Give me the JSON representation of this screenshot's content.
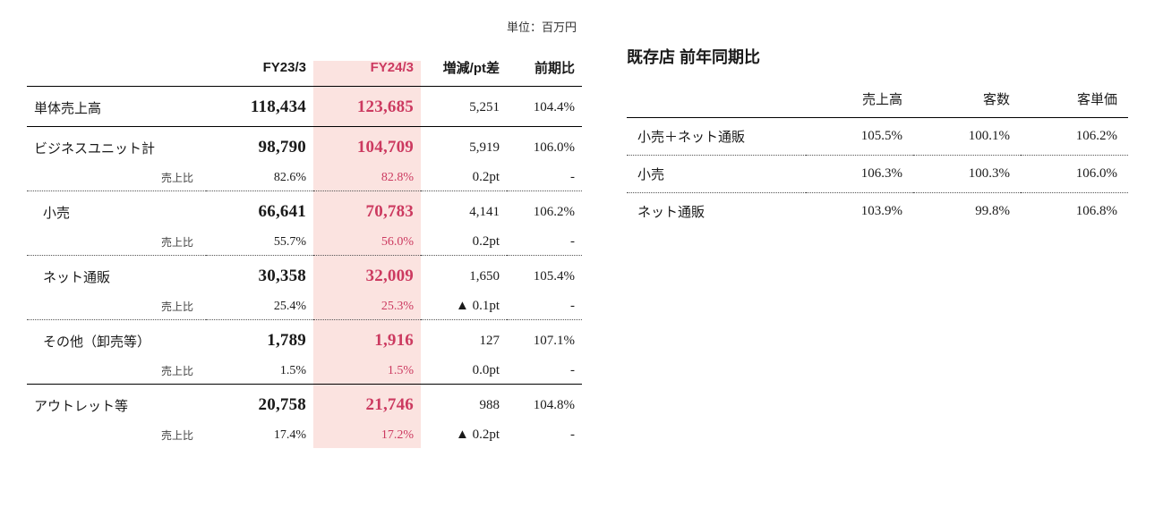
{
  "colors": {
    "text": "#1a1a1a",
    "highlight_bg": "#fbe3e0",
    "highlight_fg": "#cc3a60",
    "border_solid": "#000000",
    "border_dotted": "#555555",
    "background": "#ffffff"
  },
  "left_table": {
    "unit_note": "単位：百万円",
    "headers": {
      "label": "",
      "fy23": "FY23/3",
      "fy24": "FY24/3",
      "diff": "増減/pt差",
      "yoy": "前期比"
    },
    "ratio_label": "売上比",
    "rows": [
      {
        "label": "単体売上高",
        "fy23": "118,434",
        "fy24": "123,685",
        "diff": "5,251",
        "yoy": "104.4%",
        "border": "solid",
        "indent": false,
        "ratio": null
      },
      {
        "label": "ビジネスユニット計",
        "fy23": "98,790",
        "fy24": "104,709",
        "diff": "5,919",
        "yoy": "106.0%",
        "border": "none",
        "indent": false,
        "ratio": {
          "fy23": "82.6%",
          "fy24": "82.8%",
          "diff": "0.2pt",
          "yoy": "-",
          "border": "dotted"
        }
      },
      {
        "label": "小売",
        "fy23": "66,641",
        "fy24": "70,783",
        "diff": "4,141",
        "yoy": "106.2%",
        "border": "none",
        "indent": true,
        "ratio": {
          "fy23": "55.7%",
          "fy24": "56.0%",
          "diff": "0.2pt",
          "yoy": "-",
          "border": "dotted"
        }
      },
      {
        "label": "ネット通販",
        "fy23": "30,358",
        "fy24": "32,009",
        "diff": "1,650",
        "yoy": "105.4%",
        "border": "none",
        "indent": true,
        "ratio": {
          "fy23": "25.4%",
          "fy24": "25.3%",
          "diff": "▲ 0.1pt",
          "yoy": "-",
          "border": "dotted"
        }
      },
      {
        "label": "その他（卸売等）",
        "fy23": "1,789",
        "fy24": "1,916",
        "diff": "127",
        "yoy": "107.1%",
        "border": "none",
        "indent": true,
        "ratio": {
          "fy23": "1.5%",
          "fy24": "1.5%",
          "diff": "0.0pt",
          "yoy": "-",
          "border": "solid"
        }
      },
      {
        "label": "アウトレット等",
        "fy23": "20,758",
        "fy24": "21,746",
        "diff": "988",
        "yoy": "104.8%",
        "border": "none",
        "indent": false,
        "ratio": {
          "fy23": "17.4%",
          "fy24": "17.2%",
          "diff": "▲ 0.2pt",
          "yoy": "-",
          "border": "none"
        }
      }
    ]
  },
  "right_table": {
    "title": "既存店 前年同期比",
    "headers": {
      "label": "",
      "sales": "売上高",
      "customers": "客数",
      "per_customer": "客単価"
    },
    "rows": [
      {
        "label": "小売＋ネット通販",
        "sales": "105.5%",
        "customers": "100.1%",
        "per_customer": "106.2%"
      },
      {
        "label": "小売",
        "sales": "106.3%",
        "customers": "100.3%",
        "per_customer": "106.0%"
      },
      {
        "label": "ネット通販",
        "sales": "103.9%",
        "customers": "99.8%",
        "per_customer": "106.8%"
      }
    ]
  }
}
